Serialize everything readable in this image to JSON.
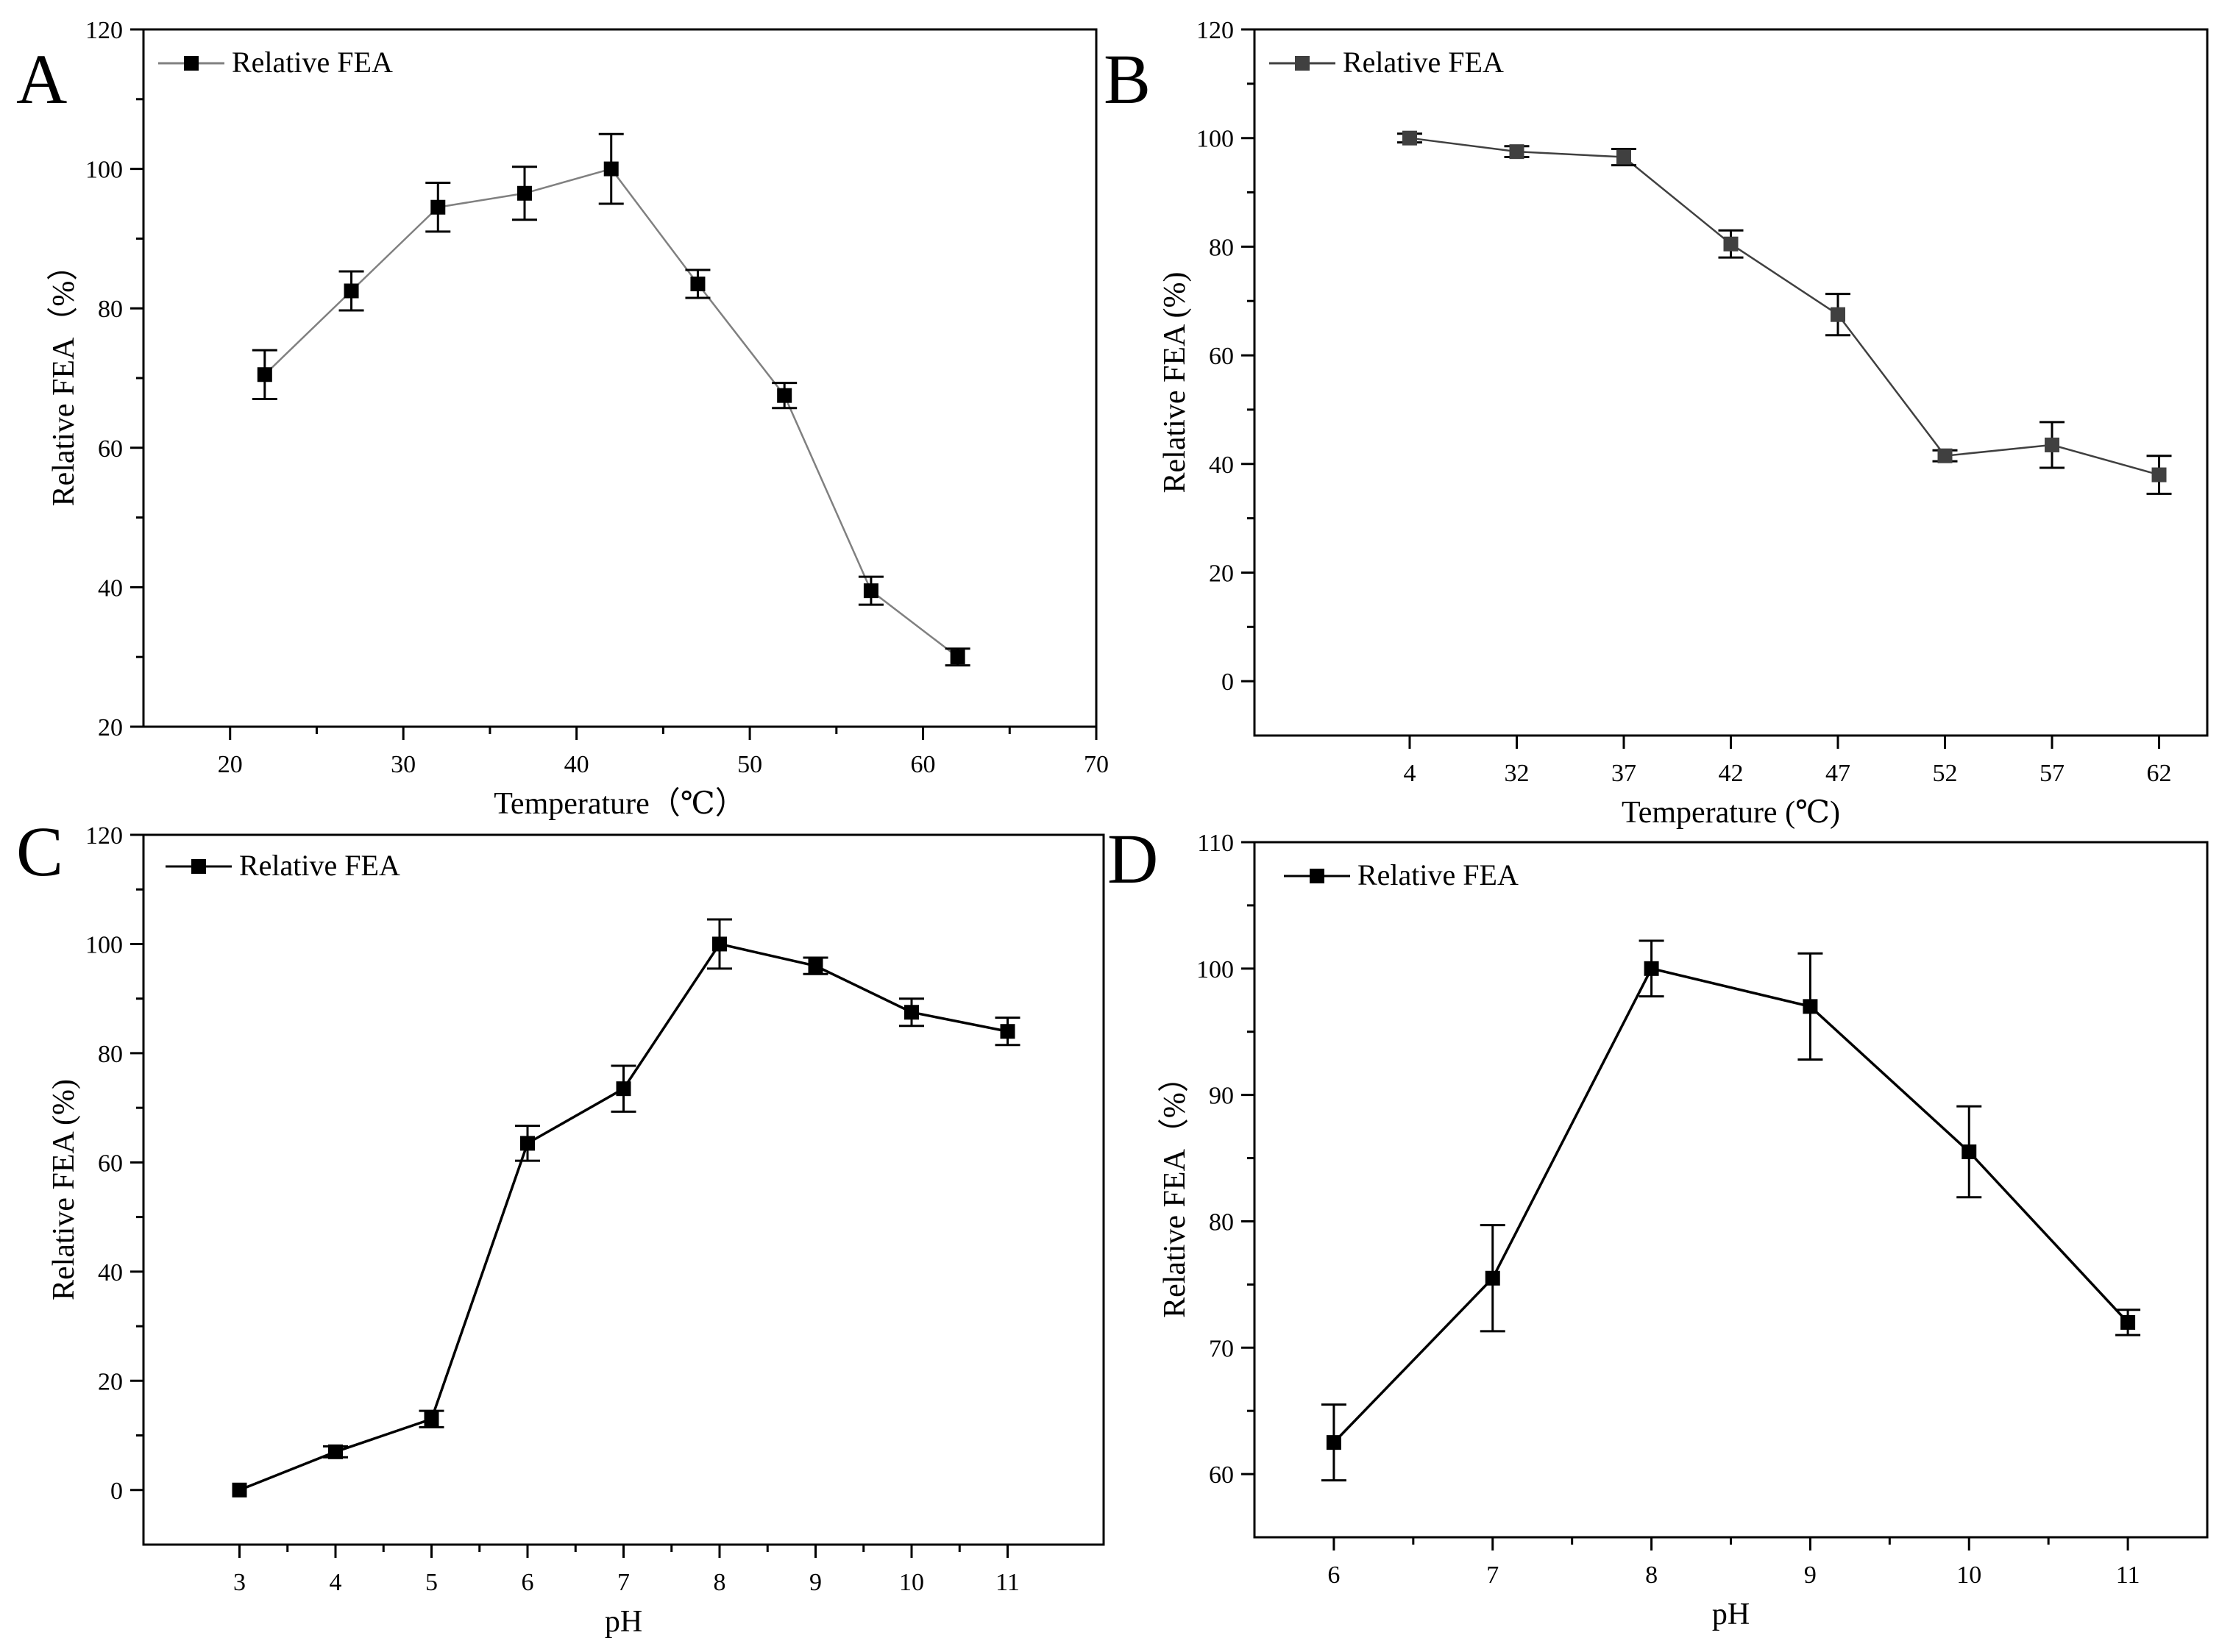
{
  "figure": {
    "panels": [
      "A",
      "B",
      "C",
      "D"
    ]
  },
  "chart_data": [
    {
      "panel": "A",
      "type": "line",
      "title": "",
      "xlabel": "Temperature（℃）",
      "ylabel": "Relative FEA（%）",
      "xlim": [
        15,
        70
      ],
      "ylim": [
        20,
        120
      ],
      "x_ticks": [
        "20",
        "30",
        "40",
        "50",
        "60",
        "70"
      ],
      "x_tick_values": [
        20,
        30,
        40,
        50,
        60,
        70
      ],
      "y_ticks": [
        "20",
        "40",
        "60",
        "80",
        "100",
        "120"
      ],
      "y_tick_values": [
        20,
        40,
        60,
        80,
        100,
        120
      ],
      "grid": false,
      "legend": "top-left",
      "line_color": "#808080",
      "marker_color": "#000000",
      "series": [
        {
          "name": "Relative FEA",
          "x": [
            22,
            27,
            32,
            37,
            42,
            47,
            52,
            57,
            62
          ],
          "values": [
            70.5,
            82.5,
            94.5,
            96.5,
            100,
            83.5,
            67.5,
            39.5,
            30
          ],
          "errors": [
            3.5,
            2.8,
            3.5,
            3.8,
            5.0,
            2.0,
            1.8,
            2.0,
            1.2
          ]
        }
      ]
    },
    {
      "panel": "B",
      "type": "line",
      "title": "",
      "xlabel": "Temperature (℃)",
      "ylabel": "Relative FEA (%)",
      "categories": [
        "4",
        "32",
        "37",
        "42",
        "47",
        "52",
        "57",
        "62"
      ],
      "ylim": [
        -10,
        120
      ],
      "y_ticks": [
        "0",
        "20",
        "40",
        "60",
        "80",
        "100",
        "120"
      ],
      "y_tick_values": [
        0,
        20,
        40,
        60,
        80,
        100,
        120
      ],
      "grid": false,
      "legend": "top-left",
      "line_color": "#404040",
      "marker_color": "#404040",
      "series": [
        {
          "name": "Relative FEA",
          "values": [
            100,
            97.5,
            96.5,
            80.5,
            67.5,
            41.5,
            43.5,
            38
          ],
          "errors": [
            0.8,
            1.0,
            1.5,
            2.5,
            3.8,
            1.0,
            4.2,
            3.5
          ]
        }
      ]
    },
    {
      "panel": "C",
      "type": "line",
      "title": "",
      "xlabel": "pH",
      "ylabel": "Relative FEA (%)",
      "xlim": [
        2,
        12
      ],
      "ylim": [
        -10,
        120
      ],
      "x_ticks": [
        "3",
        "4",
        "5",
        "6",
        "7",
        "8",
        "9",
        "10",
        "11"
      ],
      "x_tick_values": [
        3,
        4,
        5,
        6,
        7,
        8,
        9,
        10,
        11
      ],
      "y_ticks": [
        "0",
        "20",
        "40",
        "60",
        "80",
        "100",
        "120"
      ],
      "y_tick_values": [
        0,
        20,
        40,
        60,
        80,
        100,
        120
      ],
      "grid": false,
      "legend": "top-left",
      "line_color": "#000000",
      "marker_color": "#000000",
      "series": [
        {
          "name": "Relative FEA",
          "x": [
            3,
            4,
            5,
            6,
            7,
            8,
            9,
            10,
            11
          ],
          "values": [
            0,
            7,
            13,
            63.5,
            73.5,
            100,
            96,
            87.5,
            84
          ],
          "errors": [
            0,
            1.0,
            1.5,
            3.2,
            4.2,
            4.5,
            1.5,
            2.5,
            2.5
          ]
        }
      ]
    },
    {
      "panel": "D",
      "type": "line",
      "title": "",
      "xlabel": "pH",
      "ylabel": "Relative FEA（%）",
      "xlim": [
        5.5,
        11.5
      ],
      "ylim": [
        55,
        110
      ],
      "x_ticks": [
        "6",
        "7",
        "8",
        "9",
        "10",
        "11"
      ],
      "x_tick_values": [
        6,
        7,
        8,
        9,
        10,
        11
      ],
      "y_ticks": [
        "60",
        "70",
        "80",
        "90",
        "100",
        "110"
      ],
      "y_tick_values": [
        60,
        70,
        80,
        90,
        100,
        110
      ],
      "grid": false,
      "legend": "top-left",
      "line_color": "#000000",
      "marker_color": "#000000",
      "series": [
        {
          "name": "Relative FEA",
          "x": [
            6,
            7,
            8,
            9,
            10,
            11
          ],
          "values": [
            62.5,
            75.5,
            100,
            97,
            85.5,
            72
          ],
          "errors": [
            3.0,
            4.2,
            2.2,
            4.2,
            3.6,
            1.0
          ]
        }
      ]
    }
  ]
}
